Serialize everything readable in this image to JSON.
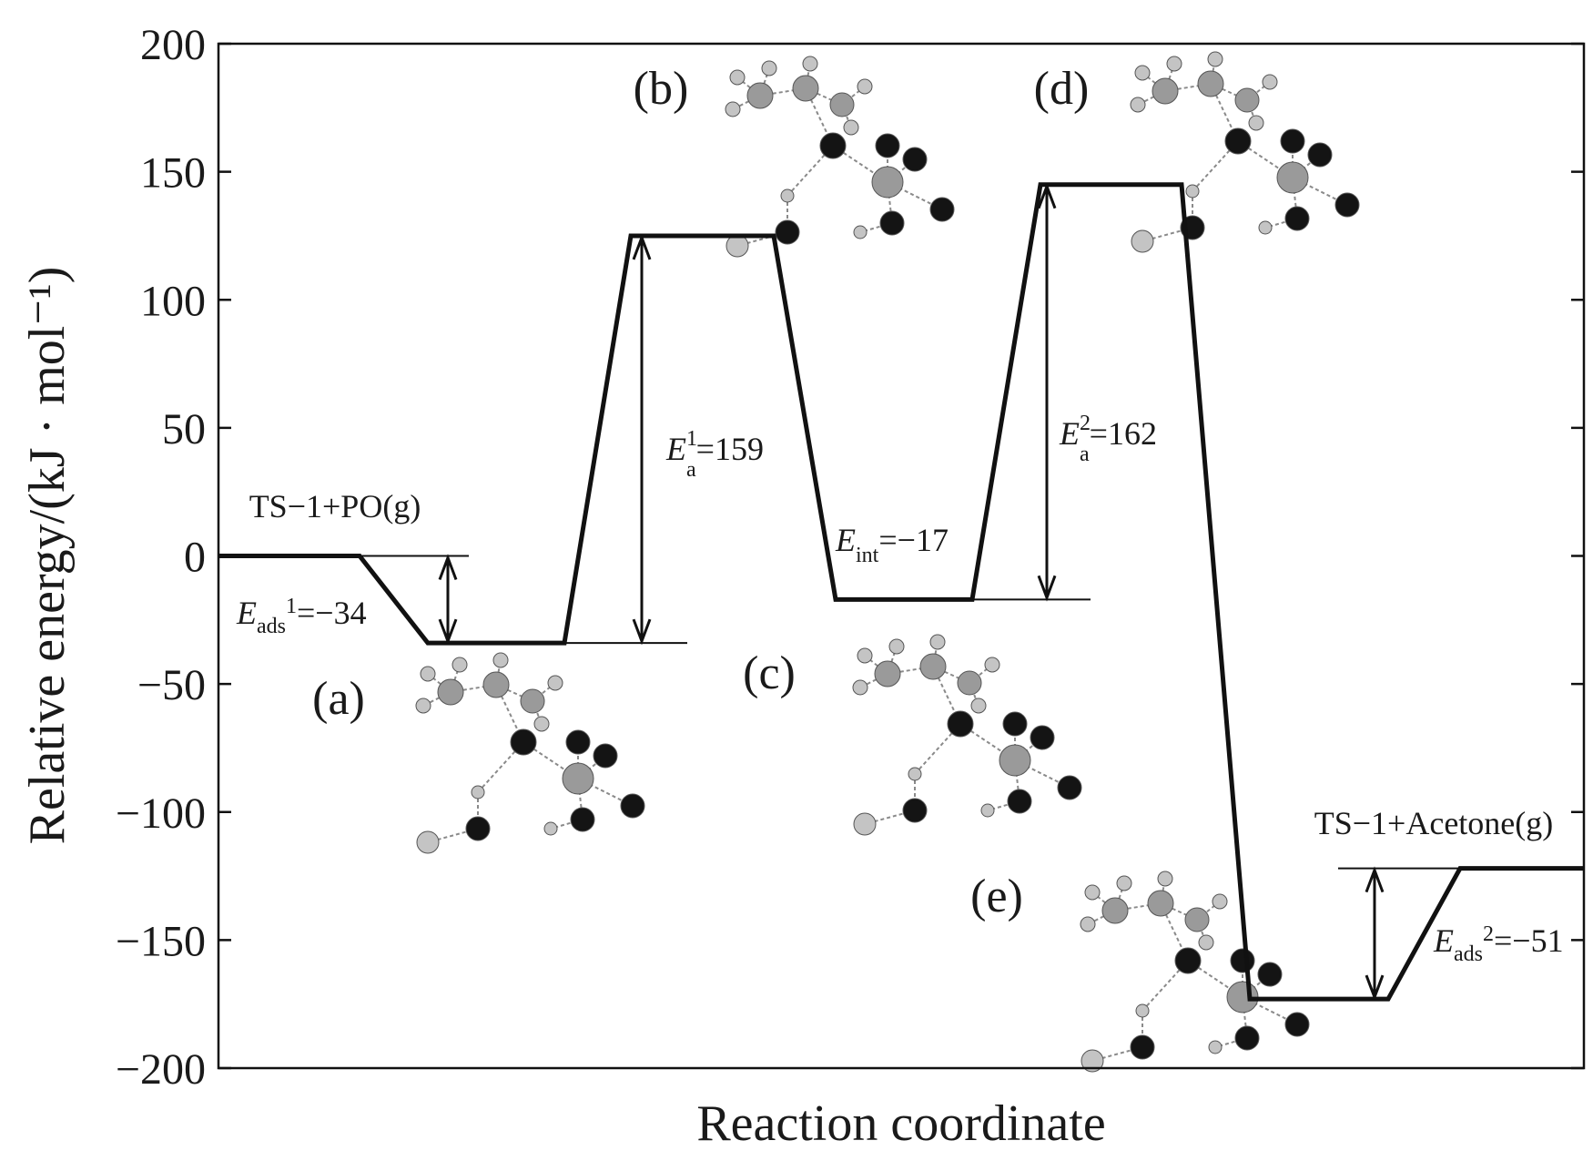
{
  "chart_data": {
    "type": "line",
    "xlabel": "Reaction coordinate",
    "ylabel": "Relative energy/(kJ · mol⁻¹)",
    "ylim": [
      -200,
      200
    ],
    "yticks": [
      200,
      150,
      100,
      50,
      0,
      -50,
      -100,
      -150,
      -200
    ],
    "ytick_labels": [
      "200",
      "150",
      "100",
      "50",
      "0",
      "−50",
      "−100",
      "−150",
      "−200"
    ],
    "grid": false,
    "legend": "none",
    "series": [
      {
        "points": [
          {
            "stage": "TS−1+PO(g)",
            "y": 0
          },
          {
            "stage": "(a)",
            "y": -34
          },
          {
            "stage": "(b)",
            "y": 125
          },
          {
            "stage": "(c)",
            "y": -17
          },
          {
            "stage": "(d)",
            "y": 145
          },
          {
            "stage": "(e)",
            "y": -173
          },
          {
            "stage": "TS−1+Acetone(g)",
            "y": -122
          }
        ]
      }
    ],
    "labels": {
      "start": "TS−1+PO(g)",
      "end": "TS−1+Acetone(g)",
      "stages": [
        "(a)",
        "(b)",
        "(c)",
        "(d)",
        "(e)"
      ]
    },
    "annotations": [
      {
        "symbol": "E",
        "sub": "ads",
        "sup": "1",
        "value": "=−34"
      },
      {
        "symbol": "E",
        "sub": "a",
        "sup": "1",
        "value": "=159"
      },
      {
        "symbol": "E",
        "sub": "int",
        "sup": "",
        "value": "=−17"
      },
      {
        "symbol": "E",
        "sub": "a",
        "sup": "2",
        "value": "=162"
      },
      {
        "symbol": "E",
        "sub": "ads",
        "sup": "2",
        "value": "=−51"
      }
    ]
  }
}
